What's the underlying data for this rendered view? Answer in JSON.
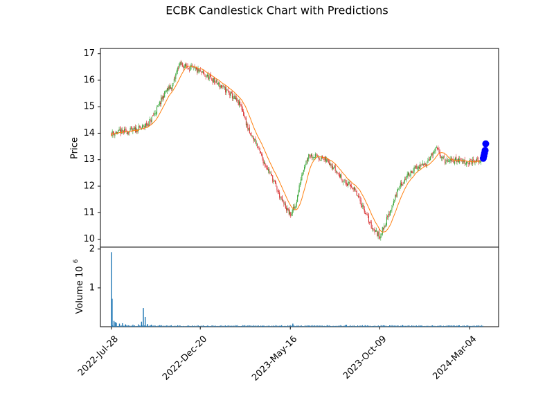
{
  "chart_data": {
    "type": "candlestick",
    "title": "ECBK Candlestick Chart with Predictions",
    "price_panel": {
      "ylabel": "Price",
      "ylim": [
        9.7,
        17.2
      ],
      "yticks": [
        "10",
        "11",
        "12",
        "13",
        "14",
        "15",
        "16",
        "17"
      ],
      "ytick_values": [
        10,
        11,
        12,
        13,
        14,
        15,
        16,
        17
      ],
      "up_color": "#2ca02c",
      "down_color": "#d62728",
      "moving_average_color": "#ff7f0e",
      "series": [
        {
          "name": "close",
          "x": [
            "2022-07-28",
            "2022-08-15",
            "2022-09-01",
            "2022-09-15",
            "2022-09-28",
            "2022-10-10",
            "2022-10-25",
            "2022-11-05",
            "2022-11-15",
            "2022-12-01",
            "2022-12-20",
            "2023-01-10",
            "2023-02-01",
            "2023-02-10",
            "2023-02-25",
            "2023-03-10",
            "2023-03-20",
            "2023-04-01",
            "2023-04-15",
            "2023-05-01",
            "2023-05-16",
            "2023-05-25",
            "2023-06-05",
            "2023-06-15",
            "2023-07-01",
            "2023-07-20",
            "2023-08-01",
            "2023-08-15",
            "2023-08-25",
            "2023-09-10",
            "2023-09-25",
            "2023-10-09",
            "2023-10-25",
            "2023-11-10",
            "2023-12-01",
            "2023-12-20",
            "2024-01-10",
            "2024-01-25",
            "2024-02-10",
            "2024-03-04",
            "2024-03-15",
            "2024-03-25"
          ],
          "values": [
            14.0,
            14.05,
            14.1,
            14.2,
            14.4,
            14.9,
            15.6,
            15.8,
            16.6,
            16.5,
            16.3,
            16.0,
            15.6,
            15.4,
            15.0,
            14.0,
            13.7,
            13.0,
            12.4,
            11.5,
            10.9,
            11.3,
            12.6,
            13.2,
            13.1,
            12.9,
            12.5,
            12.1,
            12.0,
            11.3,
            10.5,
            10.1,
            11.0,
            12.0,
            12.6,
            12.8,
            13.4,
            12.9,
            13.0,
            12.9,
            12.95,
            13.0
          ]
        },
        {
          "name": "predictions",
          "x": [
            "2024-03-26",
            "2024-03-27",
            "2024-03-28",
            "2024-03-29",
            "2024-03-30"
          ],
          "values": [
            13.05,
            13.15,
            13.25,
            13.35,
            13.6
          ],
          "color": "#0000ff"
        }
      ]
    },
    "volume_panel": {
      "ylabel": "Volume",
      "multiplier": "10",
      "multiplier_exp": "6",
      "yticks": [
        "1",
        "2"
      ],
      "ytick_values": [
        1,
        2
      ],
      "ylim": [
        0,
        2.05
      ],
      "bar_color": "#1f77b4",
      "series": [
        {
          "name": "volume",
          "x": [
            "2022-07-28",
            "2022-07-29",
            "2022-08-01",
            "2022-08-03",
            "2022-08-05",
            "2022-08-10",
            "2022-08-15",
            "2022-08-20",
            "2022-09-01",
            "2022-09-10",
            "2022-09-15",
            "2022-09-18",
            "2022-09-21",
            "2022-09-25",
            "2022-10-01",
            "2022-10-15",
            "2022-11-01",
            "2022-12-01",
            "2023-01-01",
            "2023-02-01",
            "2023-03-01",
            "2023-04-01",
            "2023-05-01",
            "2023-05-20",
            "2023-06-15",
            "2023-07-15",
            "2023-08-15",
            "2023-09-15",
            "2023-10-15",
            "2023-11-15",
            "2023-12-15",
            "2024-01-15",
            "2024-02-15",
            "2024-03-15"
          ],
          "values": [
            1.92,
            0.72,
            0.15,
            0.12,
            0.1,
            0.08,
            0.09,
            0.06,
            0.05,
            0.06,
            0.13,
            0.48,
            0.25,
            0.07,
            0.05,
            0.04,
            0.03,
            0.03,
            0.03,
            0.02,
            0.03,
            0.03,
            0.03,
            0.08,
            0.03,
            0.04,
            0.05,
            0.03,
            0.03,
            0.04,
            0.03,
            0.03,
            0.03,
            0.03
          ]
        }
      ]
    },
    "xticks": [
      "2022-Jul-28",
      "2022-Dec-20",
      "2023-May-16",
      "2023-Oct-09",
      "2024-Mar-04"
    ],
    "xtick_values": [
      "2022-07-28",
      "2022-12-20",
      "2023-05-16",
      "2023-10-09",
      "2024-03-04"
    ],
    "xlim": [
      "2022-07-10",
      "2024-04-20"
    ],
    "grid": false,
    "legend": false
  }
}
